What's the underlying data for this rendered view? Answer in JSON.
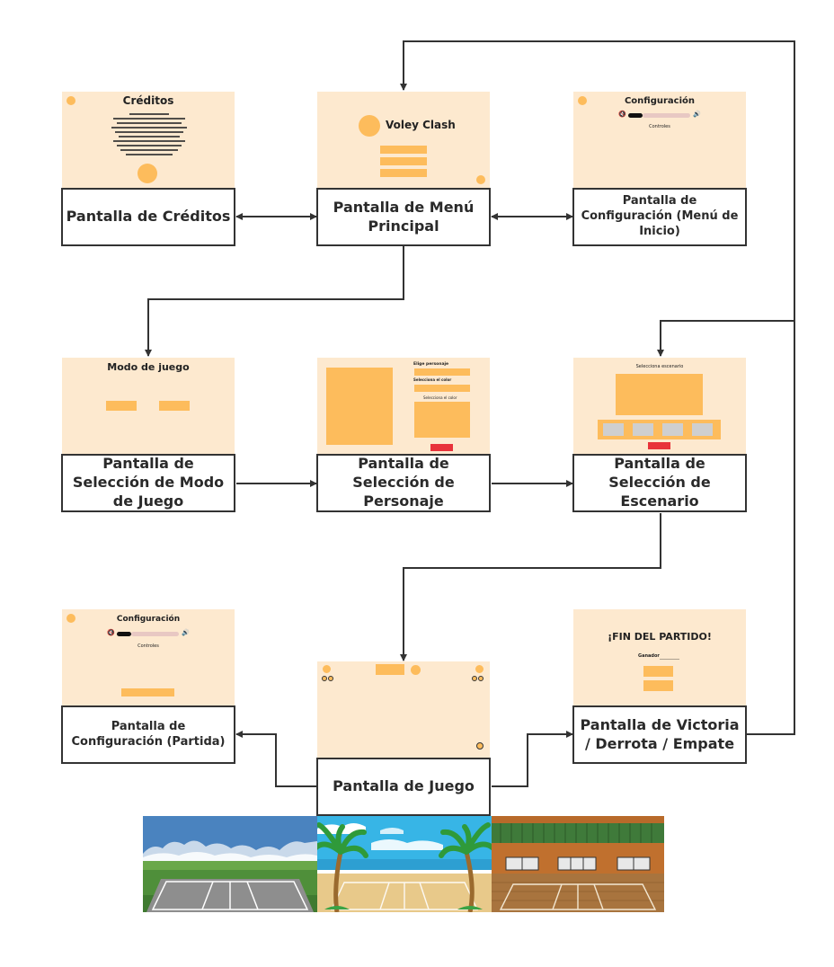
{
  "screens": {
    "creditos": {
      "title": "Créditos",
      "label": "Pantalla de Créditos"
    },
    "menu": {
      "title": "Voley Clash",
      "label": "Pantalla de Menú Principal"
    },
    "config_inicio": {
      "title": "Configuración",
      "controls": "Controles",
      "label": "Pantalla de Configuración (Menú de Inicio)"
    },
    "modo": {
      "title": "Modo de juego",
      "label": "Pantalla de Selección de Modo de Juego"
    },
    "personaje": {
      "title": "Elige personaje",
      "subtitle1": "Selecciona el color",
      "subtitle2": "Selecciona el color",
      "label": "Pantalla de Selección de Personaje"
    },
    "escenario": {
      "title": "Selecciona escenario",
      "label": "Pantalla de Selección de Escenario"
    },
    "config_partida": {
      "title": "Configuración",
      "controls": "Controles",
      "label": "Pantalla de Configuración (Partida)"
    },
    "juego": {
      "label": "Pantalla de Juego"
    },
    "victoria": {
      "title": "¡FIN DEL PARTIDO!",
      "winner": "Ganador",
      "label": "Pantalla de Victoria / Derrota / Empate"
    }
  },
  "colors": {
    "screen_bg": "#fde9cf",
    "accent": "#fdbc5c",
    "action_red": "#e8323a",
    "border": "#333333"
  },
  "icons": [
    "speaker-muted-icon",
    "speaker-loud-icon",
    "palm-tree-icon"
  ]
}
